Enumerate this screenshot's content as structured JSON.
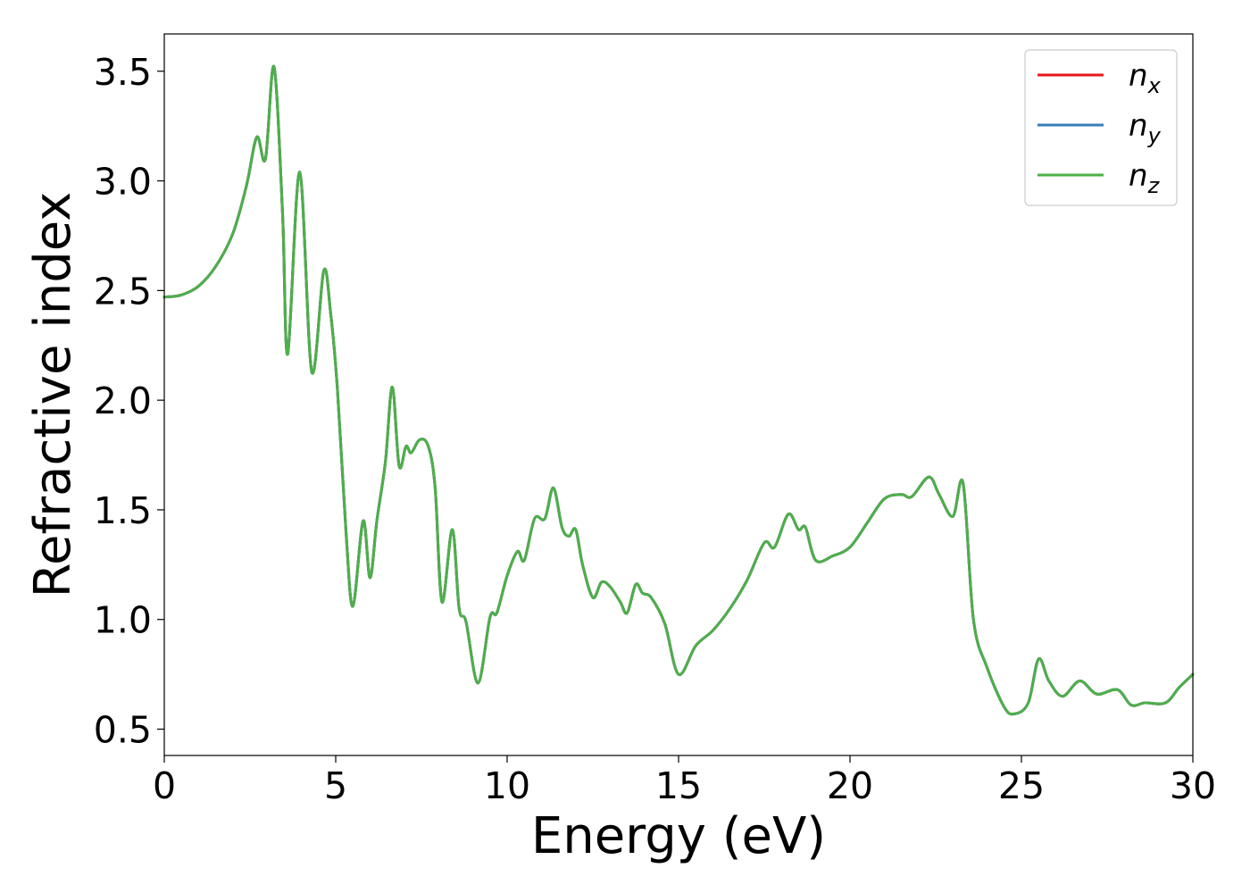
{
  "chart_data": {
    "type": "line",
    "xlabel": "Energy (eV)",
    "ylabel": "Refractive index",
    "xlim": [
      0,
      30
    ],
    "ylim": [
      0.38,
      3.67
    ],
    "xticks": [
      "0",
      "5",
      "10",
      "15",
      "20",
      "25",
      "30"
    ],
    "yticks": [
      "0.5",
      "1.0",
      "1.5",
      "2.0",
      "2.5",
      "3.0",
      "3.5"
    ],
    "grid": false,
    "legend": {
      "position": "top-right",
      "entries": [
        {
          "base": "n",
          "sub": "x",
          "color": "#e41a1c"
        },
        {
          "base": "n",
          "sub": "y",
          "color": "#377eb8"
        },
        {
          "base": "n",
          "sub": "z",
          "color": "#4daf4a"
        }
      ]
    },
    "x": [
      0,
      0.5,
      1.0,
      1.5,
      2.0,
      2.4,
      2.7,
      2.95,
      3.2,
      3.45,
      3.6,
      3.95,
      4.3,
      4.65,
      4.85,
      5.05,
      5.3,
      5.5,
      5.8,
      6.0,
      6.2,
      6.45,
      6.65,
      6.85,
      7.05,
      7.2,
      7.45,
      7.7,
      7.9,
      8.1,
      8.4,
      8.6,
      8.8,
      9.15,
      9.5,
      9.7,
      10.0,
      10.3,
      10.5,
      10.8,
      11.1,
      11.35,
      11.6,
      11.8,
      12.0,
      12.2,
      12.5,
      12.75,
      13.0,
      13.3,
      13.5,
      13.75,
      13.95,
      14.2,
      14.6,
      15.0,
      15.5,
      16.0,
      16.5,
      17.0,
      17.5,
      17.8,
      18.2,
      18.5,
      18.7,
      19.0,
      19.5,
      20.0,
      20.5,
      21.0,
      21.5,
      21.8,
      22.3,
      22.6,
      23.0,
      23.3,
      23.6,
      24.0,
      24.5,
      24.8,
      25.2,
      25.5,
      25.8,
      26.2,
      26.7,
      27.2,
      27.8,
      28.2,
      28.6,
      29.2,
      29.6,
      30.0
    ],
    "series": [
      {
        "name": "n_x",
        "color": "#e41a1c",
        "values": [
          2.47,
          2.48,
          2.52,
          2.61,
          2.76,
          2.98,
          3.2,
          3.1,
          3.52,
          2.85,
          2.21,
          3.04,
          2.13,
          2.59,
          2.4,
          2.05,
          1.4,
          1.06,
          1.45,
          1.19,
          1.45,
          1.72,
          2.06,
          1.7,
          1.79,
          1.76,
          1.82,
          1.79,
          1.6,
          1.08,
          1.41,
          1.05,
          0.99,
          0.71,
          1.01,
          1.03,
          1.2,
          1.31,
          1.27,
          1.46,
          1.46,
          1.6,
          1.42,
          1.38,
          1.41,
          1.25,
          1.1,
          1.17,
          1.15,
          1.08,
          1.03,
          1.16,
          1.12,
          1.1,
          0.98,
          0.75,
          0.88,
          0.95,
          1.05,
          1.18,
          1.35,
          1.33,
          1.48,
          1.41,
          1.42,
          1.27,
          1.29,
          1.33,
          1.44,
          1.55,
          1.57,
          1.56,
          1.65,
          1.57,
          1.47,
          1.62,
          1.0,
          0.78,
          0.6,
          0.57,
          0.62,
          0.82,
          0.72,
          0.65,
          0.72,
          0.66,
          0.68,
          0.61,
          0.62,
          0.62,
          0.69,
          0.75
        ]
      },
      {
        "name": "n_y",
        "color": "#377eb8",
        "values": [
          2.47,
          2.48,
          2.52,
          2.61,
          2.76,
          2.98,
          3.2,
          3.1,
          3.52,
          2.85,
          2.21,
          3.04,
          2.13,
          2.59,
          2.4,
          2.05,
          1.4,
          1.06,
          1.45,
          1.19,
          1.45,
          1.72,
          2.06,
          1.7,
          1.79,
          1.76,
          1.82,
          1.79,
          1.6,
          1.08,
          1.41,
          1.05,
          0.99,
          0.71,
          1.01,
          1.03,
          1.2,
          1.31,
          1.27,
          1.46,
          1.46,
          1.6,
          1.42,
          1.38,
          1.41,
          1.25,
          1.1,
          1.17,
          1.15,
          1.08,
          1.03,
          1.16,
          1.12,
          1.1,
          0.98,
          0.75,
          0.88,
          0.95,
          1.05,
          1.18,
          1.35,
          1.33,
          1.48,
          1.41,
          1.42,
          1.27,
          1.29,
          1.33,
          1.44,
          1.55,
          1.57,
          1.56,
          1.65,
          1.57,
          1.47,
          1.62,
          1.0,
          0.78,
          0.6,
          0.57,
          0.62,
          0.82,
          0.72,
          0.65,
          0.72,
          0.66,
          0.68,
          0.61,
          0.62,
          0.62,
          0.69,
          0.75
        ]
      },
      {
        "name": "n_z",
        "color": "#4daf4a",
        "values": [
          2.47,
          2.48,
          2.52,
          2.61,
          2.76,
          2.98,
          3.2,
          3.1,
          3.52,
          2.85,
          2.21,
          3.04,
          2.13,
          2.59,
          2.4,
          2.05,
          1.4,
          1.06,
          1.45,
          1.19,
          1.45,
          1.72,
          2.06,
          1.7,
          1.79,
          1.76,
          1.82,
          1.79,
          1.6,
          1.08,
          1.41,
          1.05,
          0.99,
          0.71,
          1.01,
          1.03,
          1.2,
          1.31,
          1.27,
          1.46,
          1.46,
          1.6,
          1.42,
          1.38,
          1.41,
          1.25,
          1.1,
          1.17,
          1.15,
          1.08,
          1.03,
          1.16,
          1.12,
          1.1,
          0.98,
          0.75,
          0.88,
          0.95,
          1.05,
          1.18,
          1.35,
          1.33,
          1.48,
          1.41,
          1.42,
          1.27,
          1.29,
          1.33,
          1.44,
          1.55,
          1.57,
          1.56,
          1.65,
          1.57,
          1.47,
          1.62,
          1.0,
          0.78,
          0.6,
          0.57,
          0.62,
          0.82,
          0.72,
          0.65,
          0.72,
          0.66,
          0.68,
          0.61,
          0.62,
          0.62,
          0.69,
          0.75
        ]
      }
    ]
  }
}
